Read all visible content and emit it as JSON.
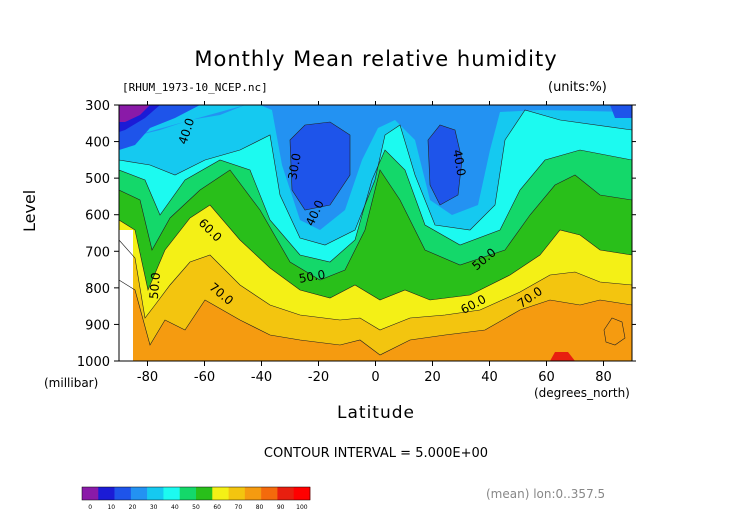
{
  "chart_data": {
    "type": "contour",
    "title": "Monthly Mean relative humidity",
    "file_label": "[RHUM_1973-10_NCEP.nc]",
    "units_label": "(units:%)",
    "xlabel": "Latitude",
    "xunit": "(degrees_north)",
    "ylabel": "Level",
    "yunit": "(millibar)",
    "xlim": [
      -90,
      90
    ],
    "ylim": [
      1000,
      300
    ],
    "x_ticks": [
      "-80",
      "-60",
      "-40",
      "-20",
      "0",
      "20",
      "40",
      "60",
      "80"
    ],
    "y_ticks": [
      "300",
      "400",
      "500",
      "600",
      "700",
      "800",
      "900",
      "1000"
    ],
    "contour_interval": "CONTOUR INTERVAL = 5.000E+00",
    "contour_labels": [
      "30.0",
      "40.0",
      "40.0",
      "40.0",
      "50.0",
      "50.0",
      "50.0",
      "60.0",
      "60.0",
      "70.0",
      "70.0"
    ],
    "colorbar": {
      "ticks": [
        "0",
        "10",
        "20",
        "30",
        "40",
        "50",
        "60",
        "70",
        "80",
        "90",
        "100"
      ],
      "colors": [
        "#8a1aa8",
        "#1b1bd6",
        "#1e54ea",
        "#2392f2",
        "#15c9f0",
        "#1cfaf0",
        "#14d86a",
        "#29bf1a",
        "#f4f016",
        "#f3c50f",
        "#f59b10",
        "#f46a0c",
        "#e81f0f",
        "#ff0000"
      ]
    },
    "footer": "(mean) lon:0..357.5"
  }
}
